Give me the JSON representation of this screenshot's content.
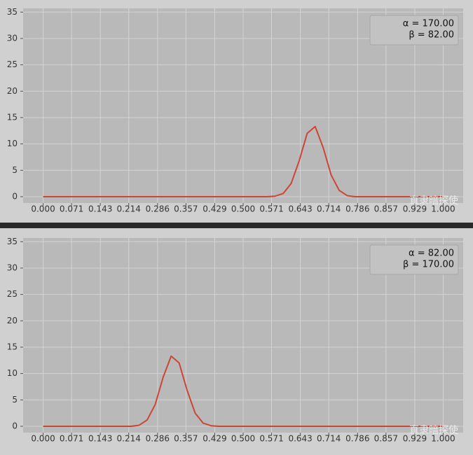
{
  "chart_data": [
    {
      "type": "line",
      "legend_lines": [
        "α = 170.00",
        "β = 82.00"
      ],
      "watermark": "直隶暗探使",
      "x": [
        0,
        0.02,
        0.04,
        0.06,
        0.08,
        0.1,
        0.12,
        0.14,
        0.16,
        0.18,
        0.2,
        0.22,
        0.24,
        0.26,
        0.28,
        0.3,
        0.32,
        0.34,
        0.36,
        0.38,
        0.4,
        0.42,
        0.44,
        0.46,
        0.48,
        0.5,
        0.52,
        0.54,
        0.56,
        0.58,
        0.6,
        0.62,
        0.64,
        0.66,
        0.68,
        0.7,
        0.72,
        0.74,
        0.76,
        0.78,
        0.8,
        0.82,
        0.84,
        0.86,
        0.88,
        0.9,
        0.92,
        0.94,
        0.96,
        0.98,
        1
      ],
      "series": [
        {
          "color": "#cc4636",
          "values": [
            0,
            0,
            0,
            0,
            0,
            0,
            0,
            0,
            0,
            0,
            0,
            0,
            0,
            0,
            0,
            0,
            0,
            0,
            0,
            0,
            0,
            0,
            0,
            0,
            0,
            0,
            0,
            0,
            0,
            0.1,
            0.6,
            2.5,
            6.8,
            12.0,
            13.3,
            9.3,
            4.1,
            1.2,
            0.2,
            0,
            0,
            0,
            0,
            0,
            0,
            0,
            0,
            0,
            0,
            0,
            0
          ]
        }
      ],
      "xlim": [
        -0.05,
        1.05
      ],
      "ylim": [
        -1.2,
        35.7
      ],
      "xticks": [
        {
          "value": 0,
          "label": "0.000"
        },
        {
          "value": 0.071,
          "label": "0.071"
        },
        {
          "value": 0.143,
          "label": "0.143"
        },
        {
          "value": 0.214,
          "label": "0.214"
        },
        {
          "value": 0.286,
          "label": "0.286"
        },
        {
          "value": 0.357,
          "label": "0.357"
        },
        {
          "value": 0.429,
          "label": "0.429"
        },
        {
          "value": 0.5,
          "label": "0.500"
        },
        {
          "value": 0.571,
          "label": "0.571"
        },
        {
          "value": 0.643,
          "label": "0.643"
        },
        {
          "value": 0.714,
          "label": "0.714"
        },
        {
          "value": 0.786,
          "label": "0.786"
        },
        {
          "value": 0.857,
          "label": "0.857"
        },
        {
          "value": 0.929,
          "label": "0.929"
        },
        {
          "value": 1,
          "label": "1.000"
        }
      ],
      "yticks": [
        0,
        5,
        10,
        15,
        20,
        25,
        30,
        35
      ],
      "grid": true
    },
    {
      "type": "line",
      "legend_lines": [
        "α = 82.00",
        "β = 170.00"
      ],
      "watermark": "直隶暗探使",
      "x": [
        0,
        0.02,
        0.04,
        0.06,
        0.08,
        0.1,
        0.12,
        0.14,
        0.16,
        0.18,
        0.2,
        0.22,
        0.24,
        0.26,
        0.28,
        0.3,
        0.32,
        0.34,
        0.36,
        0.38,
        0.4,
        0.42,
        0.44,
        0.46,
        0.48,
        0.5,
        0.52,
        0.54,
        0.56,
        0.58,
        0.6,
        0.62,
        0.64,
        0.66,
        0.68,
        0.7,
        0.72,
        0.74,
        0.76,
        0.78,
        0.8,
        0.82,
        0.84,
        0.86,
        0.88,
        0.9,
        0.92,
        0.94,
        0.96,
        0.98,
        1
      ],
      "series": [
        {
          "color": "#cc4636",
          "values": [
            0,
            0,
            0,
            0,
            0,
            0,
            0,
            0,
            0,
            0,
            0,
            0,
            0.2,
            1.2,
            4.1,
            9.3,
            13.3,
            12.0,
            6.8,
            2.5,
            0.6,
            0.1,
            0,
            0,
            0,
            0,
            0,
            0,
            0,
            0,
            0,
            0,
            0,
            0,
            0,
            0,
            0,
            0,
            0,
            0,
            0,
            0,
            0,
            0,
            0,
            0,
            0,
            0,
            0,
            0,
            0
          ]
        }
      ],
      "xlim": [
        -0.05,
        1.05
      ],
      "ylim": [
        -1.2,
        35.7
      ],
      "xticks": [
        {
          "value": 0,
          "label": "0.000"
        },
        {
          "value": 0.071,
          "label": "0.071"
        },
        {
          "value": 0.143,
          "label": "0.143"
        },
        {
          "value": 0.214,
          "label": "0.214"
        },
        {
          "value": 0.286,
          "label": "0.286"
        },
        {
          "value": 0.357,
          "label": "0.357"
        },
        {
          "value": 0.429,
          "label": "0.429"
        },
        {
          "value": 0.5,
          "label": "0.500"
        },
        {
          "value": 0.571,
          "label": "0.571"
        },
        {
          "value": 0.643,
          "label": "0.643"
        },
        {
          "value": 0.714,
          "label": "0.714"
        },
        {
          "value": 0.786,
          "label": "0.786"
        },
        {
          "value": 0.857,
          "label": "0.857"
        },
        {
          "value": 0.929,
          "label": "0.929"
        },
        {
          "value": 1,
          "label": "1.000"
        }
      ],
      "yticks": [
        0,
        5,
        10,
        15,
        20,
        25,
        30,
        35
      ],
      "grid": true
    }
  ]
}
